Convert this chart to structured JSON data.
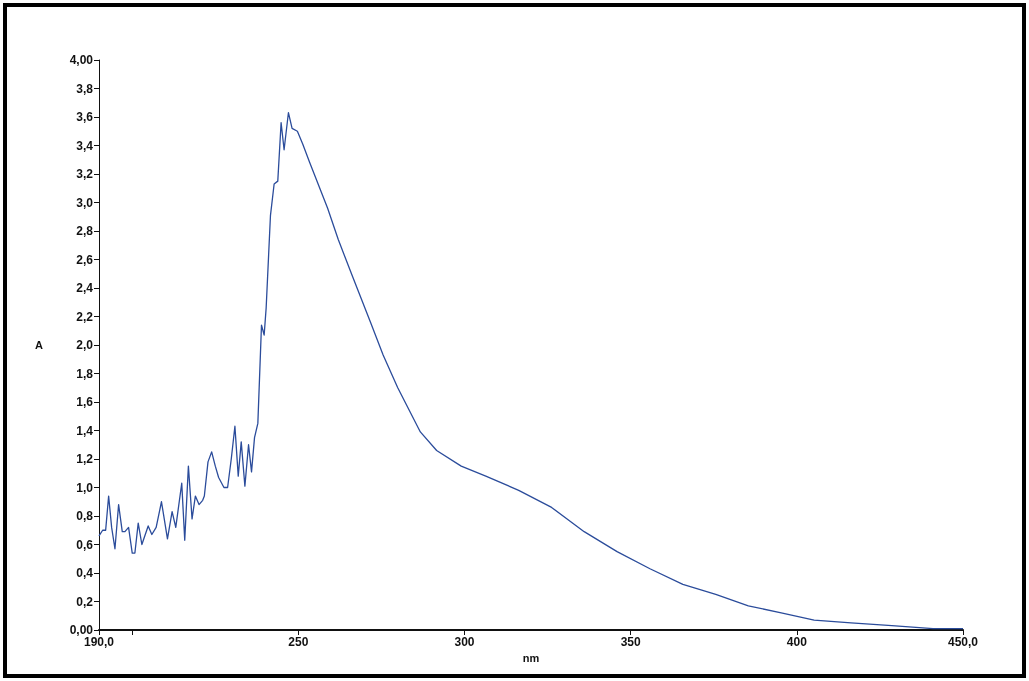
{
  "chart_data": {
    "type": "line",
    "xlabel": "nm",
    "ylabel": "A",
    "xlim": [
      190,
      450
    ],
    "ylim": [
      0,
      4
    ],
    "xticks": [
      {
        "value": 190,
        "label": "190,0"
      },
      {
        "value": 200,
        "label": null
      },
      250,
      300,
      350,
      400,
      {
        "value": 450,
        "label": "450,0"
      }
    ],
    "yticks": [
      {
        "value": 0,
        "label": "0,00"
      },
      {
        "value": 0.2,
        "label": "0,2"
      },
      {
        "value": 0.4,
        "label": "0,4"
      },
      {
        "value": 0.6,
        "label": "0,6"
      },
      {
        "value": 0.8,
        "label": "0,8"
      },
      {
        "value": 1.0,
        "label": "1,0"
      },
      {
        "value": 1.2,
        "label": "1,2"
      },
      {
        "value": 1.4,
        "label": "1,4"
      },
      {
        "value": 1.6,
        "label": "1,6"
      },
      {
        "value": 1.8,
        "label": "1,8"
      },
      {
        "value": 2.0,
        "label": "2,0"
      },
      {
        "value": 2.2,
        "label": "2,2"
      },
      {
        "value": 2.4,
        "label": "2,4"
      },
      {
        "value": 2.6,
        "label": "2,6"
      },
      {
        "value": 2.8,
        "label": "2,8"
      },
      {
        "value": 3.0,
        "label": "3,0"
      },
      {
        "value": 3.2,
        "label": "3,2"
      },
      {
        "value": 3.4,
        "label": "3,4"
      },
      {
        "value": 3.6,
        "label": "3,6"
      },
      {
        "value": 3.8,
        "label": "3,8"
      },
      {
        "value": 4,
        "label": "4,00"
      }
    ],
    "grid": false,
    "marker": "none",
    "line_style": "solid",
    "series": [
      {
        "color": "#2b4c9b",
        "x": [
          190,
          191.1,
          192,
          192.9,
          193.8,
          194.8,
          195.9,
          197,
          197.8,
          198.9,
          200,
          200.8,
          201.8,
          202.9,
          204.8,
          205.9,
          207.2,
          208.8,
          210.6,
          212,
          213.1,
          214.9,
          215.8,
          216.9,
          218,
          219,
          220.1,
          221.2,
          221.7,
          222.8,
          223.9,
          225,
          226,
          227.6,
          228.7,
          229.8,
          230.9,
          231.9,
          232.8,
          233.9,
          235,
          235.9,
          236.8,
          237.8,
          238.9,
          239.7,
          240.3,
          241.6,
          242.7,
          243.8,
          244.8,
          245.7,
          247,
          248.1,
          249.7,
          251.3,
          253.4,
          258.8,
          262,
          266.3,
          271.7,
          275.5,
          279.9,
          286.7,
          291.6,
          299,
          306.4,
          316.3,
          326.2,
          336,
          345.9,
          355.8,
          365.7,
          375.6,
          385.4,
          395.3,
          405.2,
          416.3,
          428.6,
          441,
          450
        ],
        "values": [
          0.66,
          0.7,
          0.7,
          0.94,
          0.72,
          0.57,
          0.88,
          0.69,
          0.69,
          0.72,
          0.54,
          0.54,
          0.75,
          0.6,
          0.73,
          0.67,
          0.72,
          0.9,
          0.64,
          0.83,
          0.72,
          1.03,
          0.63,
          1.15,
          0.78,
          0.94,
          0.88,
          0.91,
          0.94,
          1.18,
          1.25,
          1.15,
          1.07,
          1.0,
          1.0,
          1.2,
          1.43,
          1.08,
          1.32,
          1.01,
          1.3,
          1.11,
          1.35,
          1.45,
          2.14,
          2.07,
          2.26,
          2.91,
          3.13,
          3.15,
          3.56,
          3.37,
          3.63,
          3.52,
          3.5,
          3.41,
          3.28,
          2.96,
          2.74,
          2.48,
          2.16,
          1.93,
          1.7,
          1.39,
          1.26,
          1.15,
          1.08,
          0.98,
          0.86,
          0.69,
          0.55,
          0.43,
          0.32,
          0.25,
          0.17,
          0.12,
          0.07,
          0.05,
          0.03,
          0.01,
          0.01
        ]
      }
    ]
  }
}
